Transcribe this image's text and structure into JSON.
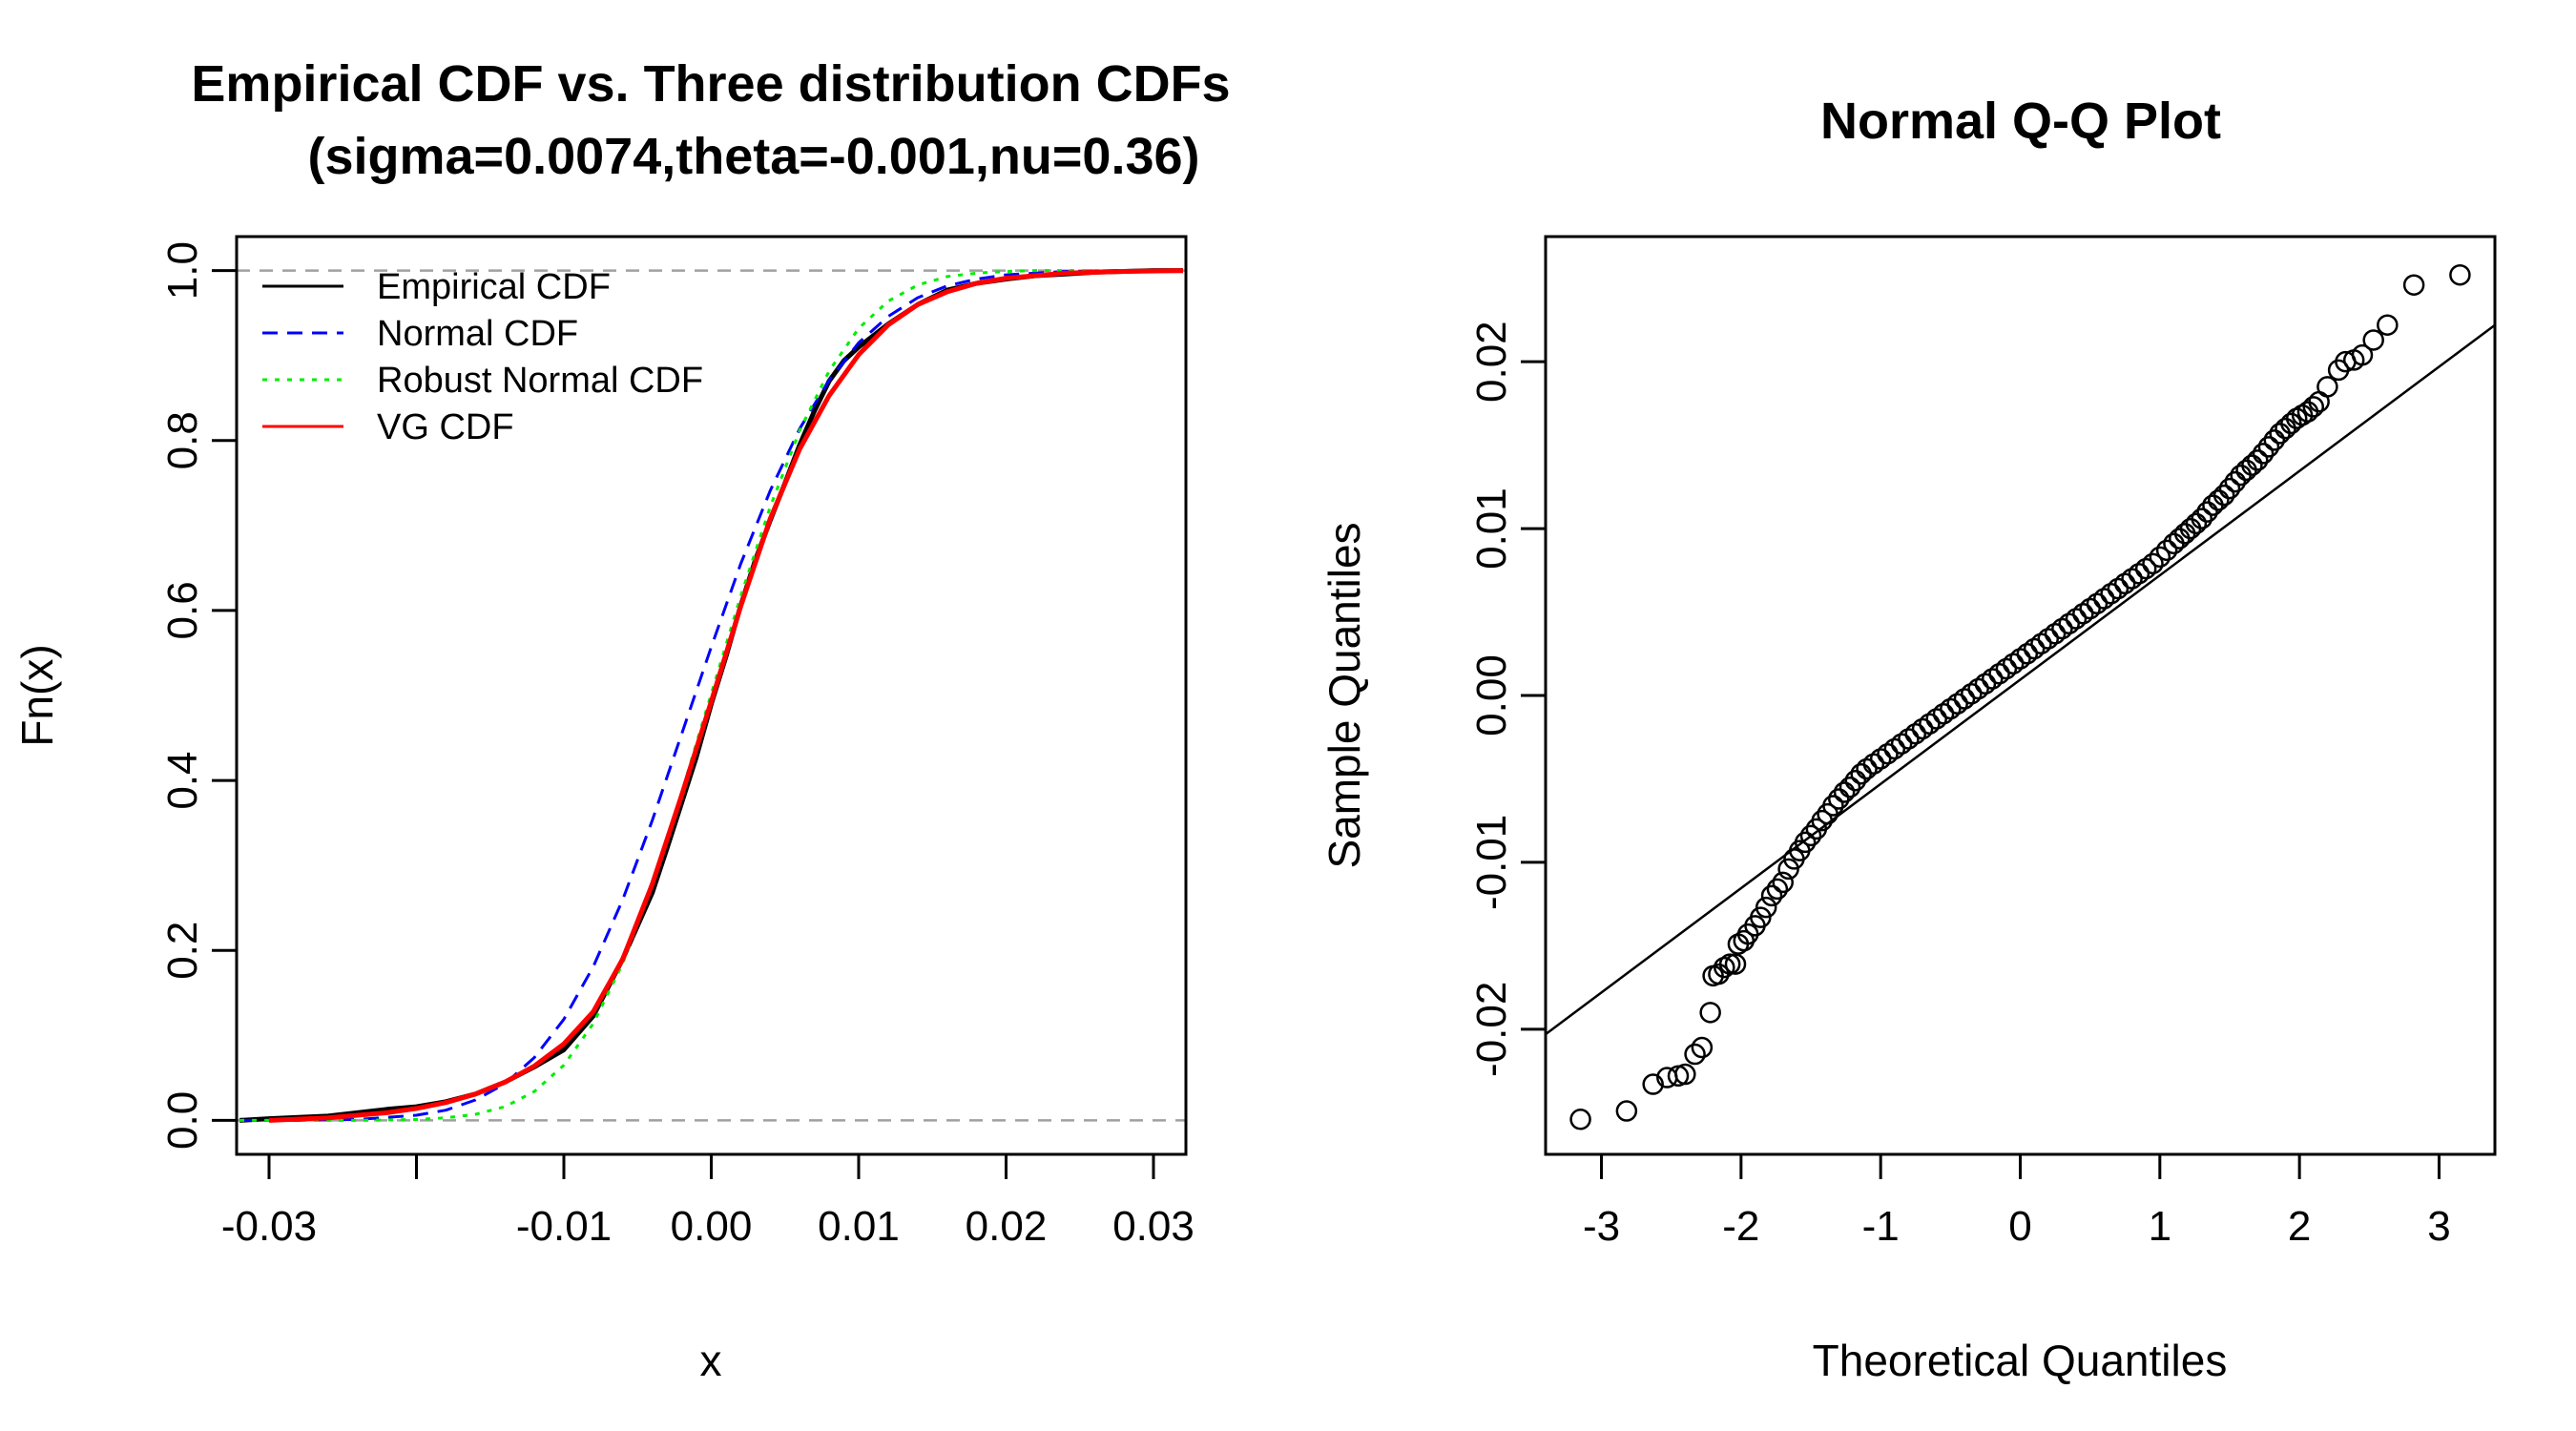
{
  "chart_data": [
    {
      "type": "line",
      "title": "Empirical CDF vs. Three distribution CDFs",
      "subtitle": "(sigma=0.0074,theta=-0.001,nu=0.36)",
      "xlabel": "x",
      "ylabel": "Fn(x)",
      "xlim": [
        -0.0322,
        0.0322
      ],
      "ylim": [
        -0.04,
        1.04
      ],
      "x_ticks": [
        -0.03,
        -0.02,
        -0.01,
        0.0,
        0.01,
        0.02,
        0.03
      ],
      "x_tick_labels": [
        "-0.03",
        "",
        "-0.01",
        "0.00",
        "0.01",
        "0.02",
        "0.03"
      ],
      "y_ticks": [
        0.0,
        0.2,
        0.4,
        0.6,
        0.8,
        1.0
      ],
      "y_tick_labels": [
        "0.0",
        "0.2",
        "0.4",
        "0.6",
        "0.8",
        "1.0"
      ],
      "reference_lines": [
        0,
        1
      ],
      "legend_position": "top-left",
      "series": [
        {
          "name": "Empirical CDF",
          "color": "#000000",
          "dash": "solid",
          "x": [
            -0.032,
            -0.03,
            -0.026,
            -0.024,
            -0.022,
            -0.02,
            -0.018,
            -0.016,
            -0.014,
            -0.012,
            -0.01,
            -0.008,
            -0.006,
            -0.004,
            -0.003,
            -0.002,
            -0.001,
            0.0,
            0.001,
            0.002,
            0.003,
            0.004,
            0.005,
            0.006,
            0.007,
            0.008,
            0.009,
            0.01,
            0.012,
            0.014,
            0.016,
            0.018,
            0.02,
            0.022,
            0.024,
            0.026,
            0.03,
            0.032
          ],
          "y": [
            0.0,
            0.002,
            0.005,
            0.009,
            0.013,
            0.016,
            0.022,
            0.031,
            0.045,
            0.063,
            0.083,
            0.123,
            0.19,
            0.268,
            0.32,
            0.374,
            0.428,
            0.49,
            0.546,
            0.606,
            0.66,
            0.706,
            0.75,
            0.795,
            0.835,
            0.87,
            0.894,
            0.91,
            0.937,
            0.96,
            0.977,
            0.985,
            0.99,
            0.994,
            0.996,
            0.998,
            1.0,
            1.0
          ]
        },
        {
          "name": "Normal CDF",
          "color": "#0000ff",
          "dash": "dashed",
          "x": [
            -0.032,
            -0.028,
            -0.024,
            -0.02,
            -0.018,
            -0.016,
            -0.014,
            -0.012,
            -0.01,
            -0.008,
            -0.006,
            -0.004,
            -0.002,
            0.0,
            0.002,
            0.004,
            0.006,
            0.008,
            0.01,
            0.012,
            0.014,
            0.016,
            0.018,
            0.02,
            0.024,
            0.028,
            0.032
          ],
          "y": [
            0.0,
            0.0,
            0.001,
            0.006,
            0.012,
            0.024,
            0.043,
            0.074,
            0.119,
            0.181,
            0.26,
            0.353,
            0.455,
            0.557,
            0.655,
            0.741,
            0.814,
            0.871,
            0.915,
            0.946,
            0.968,
            0.982,
            0.99,
            0.995,
            0.999,
            1.0,
            1.0
          ]
        },
        {
          "name": "Robust Normal CDF",
          "color": "#00ee00",
          "dash": "dotted",
          "x": [
            -0.032,
            -0.024,
            -0.02,
            -0.018,
            -0.016,
            -0.014,
            -0.012,
            -0.01,
            -0.008,
            -0.006,
            -0.004,
            -0.002,
            0.0,
            0.002,
            0.004,
            0.006,
            0.008,
            0.01,
            0.012,
            0.014,
            0.016,
            0.018,
            0.02,
            0.022,
            0.032
          ],
          "y": [
            0.0,
            0.0,
            0.001,
            0.003,
            0.007,
            0.016,
            0.034,
            0.065,
            0.114,
            0.185,
            0.277,
            0.386,
            0.502,
            0.617,
            0.722,
            0.812,
            0.882,
            0.932,
            0.964,
            0.983,
            0.993,
            0.997,
            0.999,
            1.0,
            1.0
          ]
        },
        {
          "name": "VG CDF",
          "color": "#ff0000",
          "dash": "solid",
          "x": [
            -0.03,
            -0.026,
            -0.022,
            -0.02,
            -0.018,
            -0.016,
            -0.014,
            -0.012,
            -0.01,
            -0.008,
            -0.006,
            -0.004,
            -0.002,
            0.0,
            0.002,
            0.004,
            0.006,
            0.008,
            0.01,
            0.012,
            0.014,
            0.016,
            0.018,
            0.02,
            0.024,
            0.028,
            0.032
          ],
          "y": [
            0.0,
            0.003,
            0.009,
            0.014,
            0.021,
            0.031,
            0.045,
            0.064,
            0.09,
            0.128,
            0.19,
            0.278,
            0.383,
            0.493,
            0.605,
            0.708,
            0.79,
            0.853,
            0.901,
            0.936,
            0.96,
            0.975,
            0.985,
            0.991,
            0.997,
            0.999,
            1.0
          ]
        }
      ]
    },
    {
      "type": "scatter",
      "title": "Normal Q-Q Plot",
      "xlabel": "Theoretical Quantiles",
      "ylabel": "Sample Quantiles",
      "xlim": [
        -3.4,
        3.4
      ],
      "ylim": [
        -0.0275,
        0.0275
      ],
      "x_ticks": [
        -3,
        -2,
        -1,
        0,
        1,
        2,
        3
      ],
      "x_tick_labels": [
        "-3",
        "-2",
        "-1",
        "0",
        "1",
        "2",
        "3"
      ],
      "y_ticks": [
        -0.02,
        -0.01,
        0.0,
        0.01,
        0.02
      ],
      "y_tick_labels": [
        "-0.02",
        "-0.01",
        "0.00",
        "0.01",
        "0.02"
      ],
      "qq_line": {
        "x": [
          -3.4,
          3.4
        ],
        "y": [
          -0.0203,
          0.0222
        ]
      },
      "points": {
        "x": [
          -3.15,
          -2.82,
          -2.63,
          -2.53,
          -2.45,
          -2.4,
          -2.33,
          -2.28,
          -2.22,
          -2.2,
          -2.16,
          -2.12,
          -2.08,
          -2.04,
          -2.02,
          -1.98,
          -1.95,
          -1.9,
          -1.86,
          -1.82,
          -1.78,
          -1.74,
          -1.7,
          -1.66,
          -1.62,
          -1.58,
          -1.54,
          -1.5,
          -1.46,
          -1.42,
          -1.38,
          -1.34,
          -1.3,
          -1.26,
          -1.22,
          -1.18,
          -1.14,
          -1.1,
          -1.05,
          -1.0,
          -0.95,
          -0.9,
          -0.85,
          -0.8,
          -0.75,
          -0.7,
          -0.65,
          -0.6,
          -0.55,
          -0.5,
          -0.45,
          -0.4,
          -0.35,
          -0.3,
          -0.25,
          -0.2,
          -0.15,
          -0.1,
          -0.05,
          0.0,
          0.05,
          0.1,
          0.15,
          0.2,
          0.25,
          0.3,
          0.35,
          0.4,
          0.45,
          0.5,
          0.55,
          0.6,
          0.65,
          0.7,
          0.75,
          0.8,
          0.85,
          0.9,
          0.95,
          1.0,
          1.05,
          1.1,
          1.14,
          1.18,
          1.22,
          1.26,
          1.3,
          1.34,
          1.38,
          1.42,
          1.46,
          1.5,
          1.54,
          1.58,
          1.62,
          1.66,
          1.7,
          1.74,
          1.78,
          1.82,
          1.86,
          1.9,
          1.94,
          1.98,
          2.02,
          2.06,
          2.1,
          2.14,
          2.2,
          2.28,
          2.33,
          2.39,
          2.45,
          2.53,
          2.63,
          2.82,
          3.15
        ],
        "y": [
          -0.0254,
          -0.0249,
          -0.0233,
          -0.0229,
          -0.0228,
          -0.0227,
          -0.0215,
          -0.0211,
          -0.019,
          -0.0168,
          -0.0167,
          -0.0163,
          -0.0161,
          -0.0161,
          -0.0149,
          -0.0147,
          -0.0143,
          -0.0138,
          -0.0133,
          -0.0127,
          -0.012,
          -0.0116,
          -0.0112,
          -0.0104,
          -0.0098,
          -0.0093,
          -0.0088,
          -0.0084,
          -0.008,
          -0.0075,
          -0.0071,
          -0.0066,
          -0.0062,
          -0.0058,
          -0.0055,
          -0.0051,
          -0.0047,
          -0.0044,
          -0.0041,
          -0.0038,
          -0.0035,
          -0.0032,
          -0.0029,
          -0.0026,
          -0.0023,
          -0.002,
          -0.0017,
          -0.0014,
          -0.0011,
          -0.0008,
          -0.0005,
          -0.0002,
          0.0001,
          0.0004,
          0.0007,
          0.001,
          0.0013,
          0.0016,
          0.0019,
          0.0022,
          0.0025,
          0.0028,
          0.0031,
          0.0034,
          0.0037,
          0.004,
          0.0043,
          0.0046,
          0.0049,
          0.0052,
          0.0055,
          0.0058,
          0.0061,
          0.0064,
          0.0067,
          0.007,
          0.0073,
          0.0076,
          0.0079,
          0.0083,
          0.0087,
          0.0091,
          0.0094,
          0.0097,
          0.01,
          0.0103,
          0.0106,
          0.011,
          0.0114,
          0.0117,
          0.012,
          0.0124,
          0.0128,
          0.0132,
          0.0135,
          0.0138,
          0.0141,
          0.0145,
          0.0149,
          0.0153,
          0.0157,
          0.016,
          0.0163,
          0.0166,
          0.0168,
          0.017,
          0.0173,
          0.0176,
          0.0185,
          0.0195,
          0.02,
          0.0201,
          0.0204,
          0.0213,
          0.0222,
          0.0246,
          0.0252
        ]
      }
    }
  ]
}
